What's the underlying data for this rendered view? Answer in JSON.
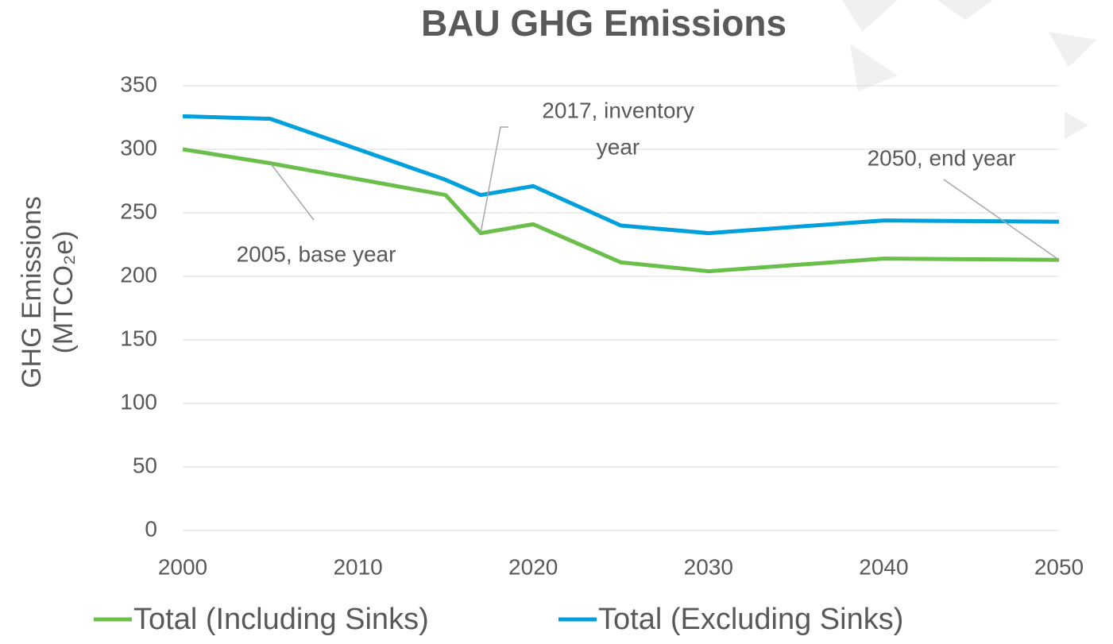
{
  "chart_data": {
    "type": "line",
    "title": "BAU GHG Emissions",
    "y_label": [
      "GHG Emissions",
      "(MTCO₂e)"
    ],
    "x": [
      2000,
      2005,
      2015,
      2017,
      2020,
      2025,
      2030,
      2040,
      2050
    ],
    "series": [
      {
        "name": "Total (Including Sinks)",
        "color": "#6abf4b",
        "values": [
          300,
          289,
          264,
          234,
          241,
          211,
          204,
          214,
          213
        ]
      },
      {
        "name": "Total (Excluding Sinks)",
        "color": "#00a0dc",
        "values": [
          326,
          324,
          276,
          264,
          271,
          240,
          234,
          244,
          243
        ]
      }
    ],
    "xlim": [
      2000,
      2050
    ],
    "xticks": [
      2000,
      2010,
      2020,
      2030,
      2040,
      2050
    ],
    "ylim": [
      0,
      350
    ],
    "yticks": [
      0,
      50,
      100,
      150,
      200,
      250,
      300,
      350
    ],
    "grid": true,
    "legend": "bottom",
    "annotations": [
      {
        "text": "2005, base year",
        "x": 2005,
        "y": 289
      },
      {
        "text": [
          "2017, inventory",
          "year"
        ],
        "x": 2017,
        "y": 234
      },
      {
        "text": "2050, end year",
        "x": 2050,
        "y": 213
      }
    ]
  }
}
